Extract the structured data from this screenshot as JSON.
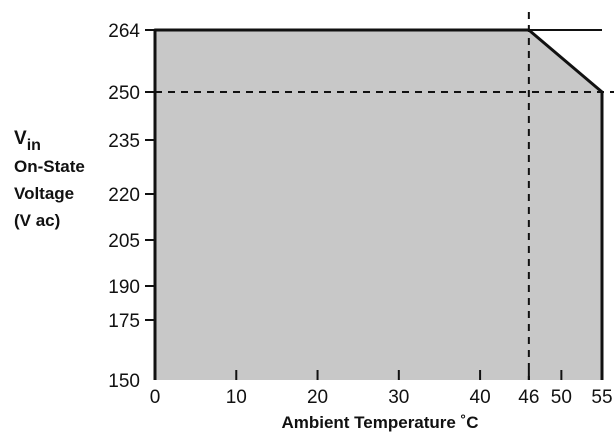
{
  "chart_data": {
    "type": "area",
    "x": [
      0,
      46,
      55
    ],
    "y": [
      264,
      264,
      250
    ],
    "ylim": [
      150,
      264
    ],
    "xlim": [
      0,
      55
    ],
    "xticks": [
      0,
      10,
      20,
      30,
      40,
      46,
      50,
      55
    ],
    "yticks": [
      150,
      175,
      190,
      205,
      220,
      235,
      250,
      264
    ],
    "xlabel": "Ambient Temperature ˚C",
    "ylabel": {
      "symbol": "V",
      "subscript": "in",
      "line2": "On-State",
      "line3": "Voltage",
      "line4": "(V ac)"
    },
    "reference_lines": [
      {
        "orientation": "vertical",
        "x": 46,
        "style": "dashed"
      },
      {
        "orientation": "horizontal",
        "y": 250,
        "style": "dashed"
      }
    ],
    "fill_color": "#c8c8c8",
    "line_color": "#111111",
    "grid": false
  }
}
